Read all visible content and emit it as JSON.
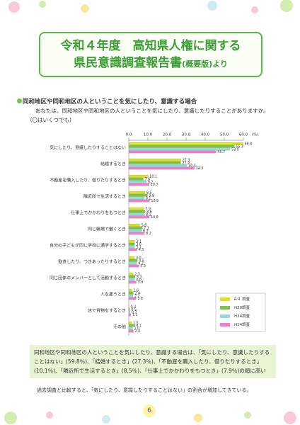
{
  "header": {
    "title_line1": "令和４年度　高知県人権に関する",
    "title_line2": "県民意識調査報告書",
    "title_suffix": "(概要版)より"
  },
  "section": {
    "heading": "同和地区や同和地区の人ということを気にしたり、意識する場合",
    "question": "あなたは、同和地区や同和地区の人ということを気にしたり、意識したりすることがありますか。（〇はいくつでも）"
  },
  "chart_data": {
    "type": "bar",
    "horizontal": true,
    "categories": [
      "気にしたり、意識したりすることはない",
      "結婚するとき",
      "不動産を購入したり、借りたりするとき",
      "隣近所で生活するとき",
      "仕事上でかかわりをもつとき",
      "同じ職場で働くとき",
      "自分の子どもが同じ学校に通学するとき",
      "飲食したり、つきあったりするとき",
      "同じ団体のメンバーとして活動するとき",
      "人を雇うとき",
      "店で買物をするとき",
      "その他"
    ],
    "series": [
      {
        "name": "R４ 調査",
        "color": "#d9e21f",
        "values": [
          59.8,
          27.3,
          10.1,
          8.5,
          7.9,
          5.8,
          3.1,
          3.0,
          2.3,
          1.6,
          0.2,
          1.5
        ],
        "value_labels": [
          "59.8",
          "27.3",
          "10.1",
          "8.5",
          "7.9",
          "5.8",
          "3.1",
          "3.0",
          "2.3",
          "1.6",
          "0.2",
          "1.5"
        ]
      },
      {
        "name": "H29調査",
        "color": "#7dc242",
        "values": [
          55.3,
          27.2,
          7.6,
          9.8,
          8.6,
          7.1,
          3.0,
          4.5,
          3.3,
          2.4,
          0.5,
          3.1
        ],
        "value_labels": [
          "55.3",
          "27.2",
          "7.6",
          "9.8",
          "8.6",
          "7.1",
          "3.0",
          "4.5",
          "3.3",
          "2.4",
          "0.5",
          "3.1"
        ]
      },
      {
        "name": "H24調査",
        "color": "#8fdcd6",
        "values": [
          53.0,
          30.5,
          9.2,
          8.1,
          8.2,
          6.7,
          3.1,
          4.2,
          3.0,
          2.2,
          0.7,
          2.0
        ],
        "value_labels": [
          "53.0",
          "30.5",
          "9.2",
          "8.1",
          "8.2",
          "6.7",
          "3.1",
          "4.2",
          "3.0",
          "2.2",
          "0.7",
          "2.0"
        ]
      },
      {
        "name": "H14調査",
        "color": "#f07cc8",
        "values": [
          45.7,
          34.3,
          10.7,
          10.9,
          10.8,
          8.2,
          4.3,
          5.3,
          3.9,
          3.8,
          1.1,
          2.4
        ],
        "value_labels": [
          "45.7",
          "34.3",
          "10.7",
          "10.9",
          "10.8",
          "8.2",
          "4.3",
          "5.3",
          "3.9",
          "3.8",
          "1.1",
          "2.4"
        ]
      }
    ],
    "xlim": [
      0,
      60
    ],
    "xticks": [
      {
        "value": 0,
        "label": "0.0"
      },
      {
        "value": 10,
        "label": "10.0"
      },
      {
        "value": 20,
        "label": "20.0"
      },
      {
        "value": 30,
        "label": "30.0"
      },
      {
        "value": 40,
        "label": "40.0"
      },
      {
        "value": 50,
        "label": "50.0"
      },
      {
        "value": 60,
        "label": "60.0"
      }
    ],
    "x_unit": "(%)",
    "legend": "right"
  },
  "summary": "同和地区や同和地区の人ということを気にしたり、意識する場合は、「気にしたり、意識したりすることはない」(59.8％)、「結婚するとき」(27.3％)、「不動産を購入したり、借りたりするとき」(10.1％)、「隣近所で生活するとき」(8.5％)、「仕事上でかかわりをもつとき」(7.9％)の順に高い",
  "note": "過去調査と比較すると、「気にしたり、意識したりすることはない」の割合が増加してきている。",
  "page_number": "6"
}
